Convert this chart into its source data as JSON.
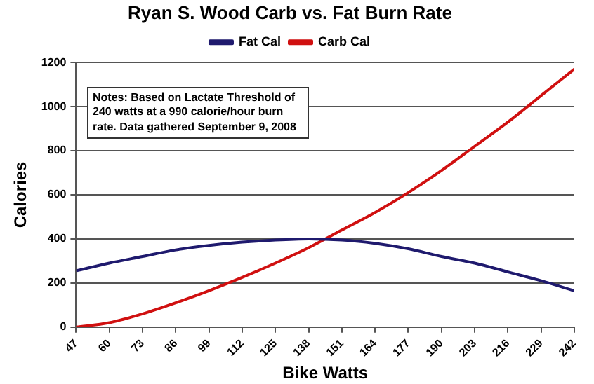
{
  "chart_data": {
    "type": "line",
    "title": "Ryan S. Wood Carb vs. Fat Burn Rate",
    "xlabel": "Bike Watts",
    "ylabel": "Calories",
    "x": [
      47,
      60,
      73,
      86,
      99,
      112,
      125,
      138,
      151,
      164,
      177,
      190,
      203,
      216,
      229,
      242
    ],
    "series": [
      {
        "name": "Fat Cal",
        "color": "#1f1a6e",
        "values": [
          255,
          290,
          320,
          350,
          370,
          385,
          395,
          400,
          395,
          380,
          355,
          320,
          290,
          250,
          210,
          165
        ]
      },
      {
        "name": "Carb Cal",
        "color": "#d01010",
        "values": [
          0,
          20,
          60,
          110,
          165,
          225,
          290,
          360,
          440,
          520,
          610,
          710,
          820,
          930,
          1050,
          1170
        ]
      }
    ],
    "xlim": [
      47,
      242
    ],
    "xticks": [
      47,
      60,
      73,
      86,
      99,
      112,
      125,
      138,
      151,
      164,
      177,
      190,
      203,
      216,
      229,
      242
    ],
    "ylim": [
      0,
      1200
    ],
    "yticks": [
      0,
      200,
      400,
      600,
      800,
      1000,
      1200
    ],
    "grid": "y",
    "legend": "top",
    "marker": "none",
    "line_style": "solid",
    "annotations": [
      "Notes: Based on Lactate Threshold of 240 watts at a 990 calorie/hour burn rate. Data gathered September 9, 2008"
    ]
  }
}
